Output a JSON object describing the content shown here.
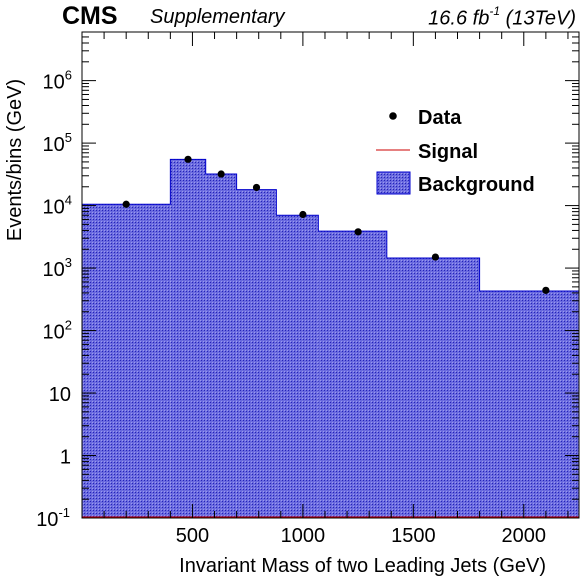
{
  "header": {
    "experiment": "CMS",
    "tag": "Supplementary",
    "lumi_value": "16.6 fb",
    "lumi_exp": "-1",
    "energy": "(13TeV)"
  },
  "colors": {
    "background_fill": "#5b5bd6",
    "background_line": "#0000cc",
    "signal_line": "#cc0000",
    "data_marker": "#000000"
  },
  "chart_data": {
    "type": "bar",
    "xlabel": "Invariant Mass of two Leading Jets (GeV)",
    "ylabel": "Events/bins (GeV)",
    "xlim": [
      0,
      2250
    ],
    "ylim": [
      0.1,
      6000000
    ],
    "yscale": "log",
    "xticks": [
      500,
      1000,
      1500,
      2000
    ],
    "yticks": [
      {
        "value": 0.1,
        "label": "10",
        "exp": "-1"
      },
      {
        "value": 1,
        "label": "1",
        "exp": ""
      },
      {
        "value": 10,
        "label": "10",
        "exp": ""
      },
      {
        "value": 100,
        "label": "10",
        "exp": "2"
      },
      {
        "value": 1000,
        "label": "10",
        "exp": "3"
      },
      {
        "value": 10000,
        "label": "10",
        "exp": "4"
      },
      {
        "value": 100000,
        "label": "10",
        "exp": "5"
      },
      {
        "value": 1000000,
        "label": "10",
        "exp": "6"
      }
    ],
    "bin_edges": [
      0,
      400,
      560,
      700,
      880,
      1070,
      1380,
      1800,
      2250
    ],
    "background": [
      10500,
      55000,
      32000,
      18000,
      7000,
      3900,
      1450,
      430
    ],
    "data": [
      {
        "x": 200,
        "y": 10500
      },
      {
        "x": 480,
        "y": 55000
      },
      {
        "x": 630,
        "y": 32000
      },
      {
        "x": 790,
        "y": 19500
      },
      {
        "x": 1000,
        "y": 7200
      },
      {
        "x": 1250,
        "y": 3800
      },
      {
        "x": 1600,
        "y": 1500
      },
      {
        "x": 2100,
        "y": 440
      }
    ],
    "legend": {
      "position": "top-right",
      "entries": [
        {
          "label": "Data",
          "style": "marker"
        },
        {
          "label": "Signal",
          "style": "line"
        },
        {
          "label": "Background",
          "style": "fill"
        }
      ]
    }
  }
}
